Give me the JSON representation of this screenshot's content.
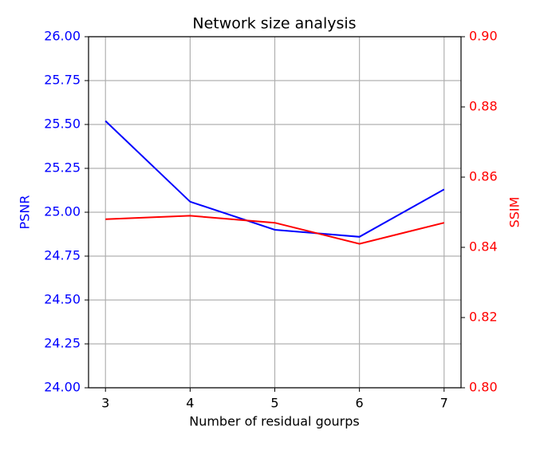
{
  "chart_data": {
    "type": "line",
    "title": "Network size analysis",
    "x_label": "Number of residual gourps",
    "y_label": "PSNR",
    "y2_label": "SSIM",
    "x": [
      3,
      4,
      5,
      6,
      7
    ],
    "series": [
      {
        "name": "PSNR",
        "color": "#0000ff",
        "values": [
          25.52,
          25.06,
          24.9,
          24.86,
          25.13
        ]
      },
      {
        "name": "SSIM",
        "color": "#ff0000",
        "axis": "y2",
        "values": [
          0.848,
          0.849,
          0.847,
          0.841,
          0.847
        ]
      }
    ],
    "xlim": [
      2.8,
      7.2
    ],
    "xticks": [
      3,
      4,
      5,
      6,
      7
    ],
    "ylim": [
      24,
      26
    ],
    "yticks": [
      {
        "value": 24,
        "label": "24.00"
      },
      24.25,
      {
        "value": 24.5,
        "label": "24.50"
      },
      24.75,
      {
        "value": 25,
        "label": "25.00"
      },
      25.25,
      {
        "value": 25.5,
        "label": "25.50"
      },
      25.75,
      {
        "value": 26,
        "label": "26.00"
      }
    ],
    "y2lim": [
      0.8,
      0.9
    ],
    "y2ticks": [
      {
        "value": 0.8,
        "label": "0.80"
      },
      0.82,
      0.84,
      0.86,
      0.88,
      {
        "value": 0.9,
        "label": "0.90"
      }
    ],
    "grid": true
  }
}
